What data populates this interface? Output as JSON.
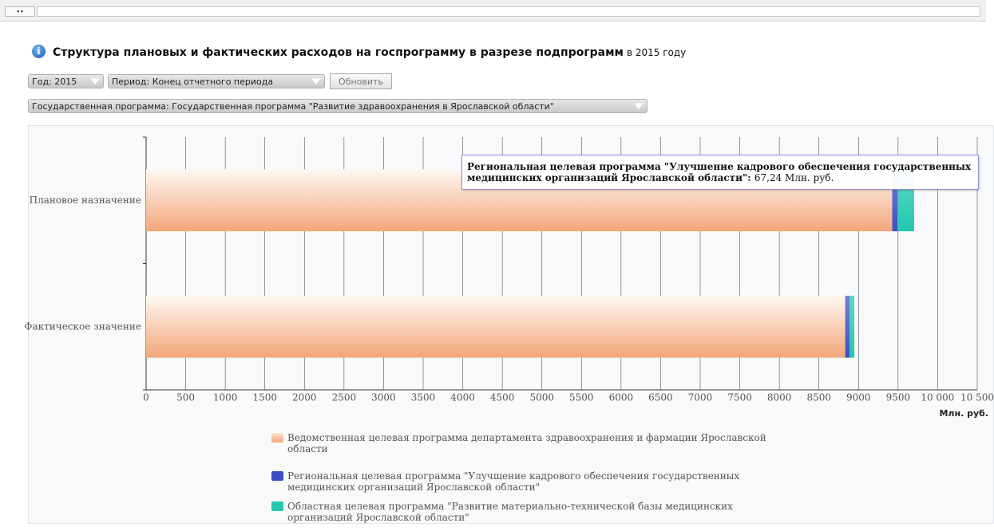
{
  "header": {
    "title": "Структура плановых и фактических расходов на госпрограмму в разрезе подпрограмм",
    "subtitle": "в 2015 году"
  },
  "controls": {
    "year": "Год: 2015",
    "period": "Период: Конец отчетного периода",
    "refresh": "Обновить",
    "program": "Государственная программа: Государственная программа \"Развитие здравоохранения в Ярославской области\""
  },
  "chart_data": {
    "type": "stacked_barh",
    "categories": [
      "Плановое назначение",
      "Фактическое значение"
    ],
    "series": [
      {
        "name": "Ведомственная целевая программа департамента здравоохранения и фармации Ярославской области",
        "color": "#f2a67a",
        "values": [
          9426,
          8832
        ]
      },
      {
        "name": "Региональная целевая программа \"Улучшение кадрового обеспечения государственных медицинских организаций Ярославской области\"",
        "color": "#3b4fc4",
        "values": [
          67.24,
          55
        ]
      },
      {
        "name": "Областная целевая программа \"Развитие материально-технической базы медицинских организаций Ярославской области\"",
        "color": "#22c7ae",
        "values": [
          210,
          60
        ]
      }
    ],
    "xlim": [
      0,
      10500
    ],
    "xticks": [
      0,
      500,
      1000,
      1500,
      2000,
      2500,
      3000,
      3500,
      4000,
      4500,
      5000,
      5500,
      6000,
      6500,
      7000,
      7500,
      8000,
      8500,
      9000,
      9500,
      {
        "value": 10000,
        "label": "10 000"
      },
      {
        "value": 10500,
        "label": "10 500"
      }
    ],
    "x_label": "Млн. руб.",
    "grid": true,
    "tooltip": {
      "name": "Региональная целевая программа \"Улучшение кадрового обеспечения государственных медицинских организаций Ярославской области\"",
      "value": 67.24,
      "value_label": "67,24 Млн. руб."
    }
  }
}
